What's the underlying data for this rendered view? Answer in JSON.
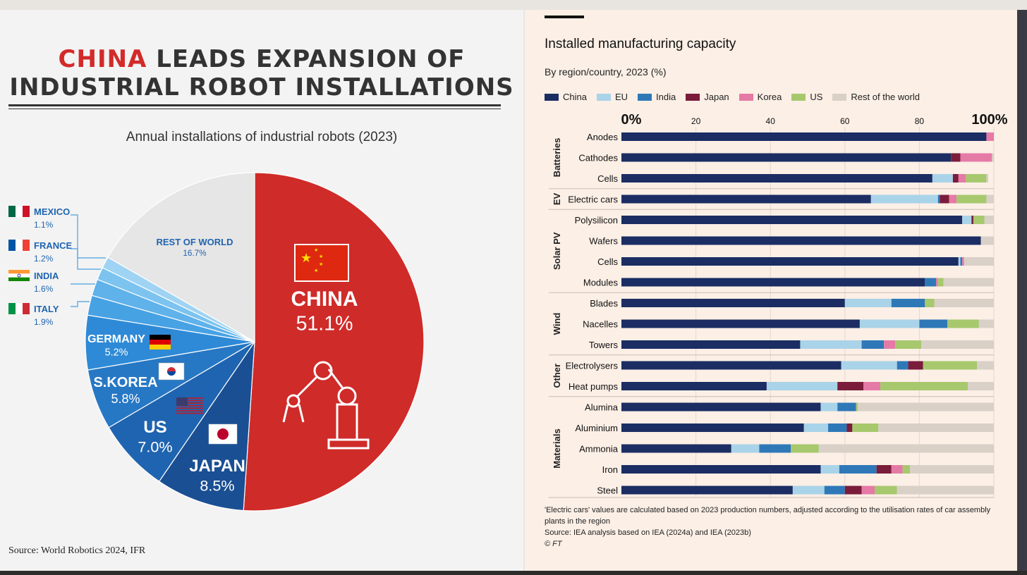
{
  "left_panel": {
    "title_red": "CHINA",
    "title_rest": "LEADS EXPANSION OF",
    "title_line2": "INDUSTRIAL ROBOT INSTALLATIONS",
    "subtitle": "Annual installations of industrial robots (2023)",
    "source": "Source: World Robotics 2024, IFR"
  },
  "right_panel": {
    "title": "Installed manufacturing capacity",
    "subtitle": "By region/country, 2023 (%)",
    "note1": "'Electric cars' values are calculated based on 2023 production numbers, adjusted according to the utilisation rates of car assembly plants in the region",
    "note2": "Source: IEA analysis based on IEA (2024a) and IEA (2023b)",
    "copyright": "© FT"
  },
  "chart_data": [
    {
      "type": "pie",
      "title": "Annual installations of industrial robots (2023)",
      "slices": [
        {
          "label": "CHINA",
          "value": 51.1,
          "value_label": "51.1%",
          "color": "#cf2b29"
        },
        {
          "label": "JAPAN",
          "value": 8.5,
          "value_label": "8.5%",
          "color": "#1a4f94"
        },
        {
          "label": "US",
          "value": 7.0,
          "value_label": "7.0%",
          "color": "#1f64b0"
        },
        {
          "label": "S.KOREA",
          "value": 5.8,
          "value_label": "5.8%",
          "color": "#2778c4"
        },
        {
          "label": "GERMANY",
          "value": 5.2,
          "value_label": "5.2%",
          "color": "#2e8ad6"
        },
        {
          "label": "ITALY",
          "value": 1.9,
          "value_label": "1.9%",
          "color": "#47a2e4"
        },
        {
          "label": "INDIA",
          "value": 1.6,
          "value_label": "1.6%",
          "color": "#5fb2ea"
        },
        {
          "label": "FRANCE",
          "value": 1.2,
          "value_label": "1.2%",
          "color": "#7cc3ef"
        },
        {
          "label": "MEXICO",
          "value": 1.1,
          "value_label": "1.1%",
          "color": "#9fd3f3"
        },
        {
          "label": "REST OF WORLD",
          "value": 16.7,
          "value_label": "16.7%",
          "color": "#e6e6e6"
        }
      ]
    },
    {
      "type": "bar",
      "stacked": true,
      "orientation": "horizontal",
      "title": "Installed manufacturing capacity",
      "subtitle": "By region/country, 2023 (%)",
      "xlim": [
        0,
        100
      ],
      "x_ticks": [
        "0%",
        "20",
        "40",
        "60",
        "80",
        "100%"
      ],
      "series": [
        {
          "name": "China",
          "color": "#1b2d63"
        },
        {
          "name": "EU",
          "color": "#a9d3e8"
        },
        {
          "name": "India",
          "color": "#2f78b8"
        },
        {
          "name": "Japan",
          "color": "#7a1c3a"
        },
        {
          "name": "Korea",
          "color": "#e57aa6"
        },
        {
          "name": "US",
          "color": "#a7c86d"
        },
        {
          "name": "Rest of the world",
          "color": "#d9d0c8"
        }
      ],
      "groups": [
        {
          "name": "Batteries",
          "categories": [
            "Anodes",
            "Cathodes",
            "Cells"
          ]
        },
        {
          "name": "EV",
          "categories": [
            "Electric cars"
          ]
        },
        {
          "name": "Solar PV",
          "categories": [
            "Polysilicon",
            "Wafers",
            "Cells",
            "Modules"
          ]
        },
        {
          "name": "Wind",
          "categories": [
            "Blades",
            "Nacelles",
            "Towers"
          ]
        },
        {
          "name": "Other",
          "categories": [
            "Electrolysers",
            "Heat pumps"
          ]
        },
        {
          "name": "Materials",
          "categories": [
            "Alumina",
            "Aluminium",
            "Ammonia",
            "Iron",
            "Steel"
          ]
        }
      ],
      "rows": [
        {
          "category": "Anodes",
          "values": [
            98,
            0,
            0,
            0,
            2,
            0,
            0
          ]
        },
        {
          "category": "Cathodes",
          "values": [
            88.5,
            0,
            0,
            2.5,
            8.5,
            0,
            0.5
          ]
        },
        {
          "category": "Cells",
          "values": [
            83.5,
            5.5,
            0,
            1.5,
            2,
            5.5,
            0.5
          ]
        },
        {
          "category": "Electric cars",
          "values": [
            67,
            18,
            0.5,
            2.5,
            2,
            8,
            2
          ]
        },
        {
          "category": "Polysilicon",
          "values": [
            91.5,
            2.5,
            0,
            0.5,
            0,
            3,
            2.5
          ]
        },
        {
          "category": "Wafers",
          "values": [
            96.5,
            0,
            0,
            0,
            0,
            0,
            3.5
          ]
        },
        {
          "category": "Cells",
          "values": [
            90.5,
            0.5,
            0.5,
            0,
            0.5,
            0,
            8
          ]
        },
        {
          "category": "Modules",
          "values": [
            81.5,
            0,
            3,
            0,
            0.5,
            1.5,
            13.5
          ]
        },
        {
          "category": "Blades",
          "values": [
            60,
            12.5,
            9,
            0,
            0,
            2.5,
            16
          ]
        },
        {
          "category": "Nacelles",
          "values": [
            64,
            16,
            7.5,
            0,
            0,
            8.5,
            4
          ]
        },
        {
          "category": "Towers",
          "values": [
            48,
            16.5,
            6,
            0,
            3,
            7,
            19.5
          ]
        },
        {
          "category": "Electrolysers",
          "values": [
            59,
            15,
            3,
            4,
            0,
            14.5,
            4.5
          ]
        },
        {
          "category": "Heat pumps",
          "values": [
            39,
            19,
            0,
            7,
            4.5,
            23.5,
            7
          ]
        },
        {
          "category": "Alumina",
          "values": [
            53.5,
            4.5,
            5,
            0,
            0,
            0.5,
            36.5
          ]
        },
        {
          "category": "Aluminium",
          "values": [
            49,
            6.5,
            5,
            1.5,
            0,
            7,
            31
          ]
        },
        {
          "category": "Ammonia",
          "values": [
            29.5,
            7.5,
            8.5,
            0,
            0,
            7.5,
            47
          ]
        },
        {
          "category": "Iron",
          "values": [
            53.5,
            5,
            10,
            4,
            3,
            2,
            22.5
          ]
        },
        {
          "category": "Steel",
          "values": [
            46,
            8.5,
            5.5,
            4.5,
            3.5,
            6,
            26
          ]
        }
      ]
    }
  ]
}
